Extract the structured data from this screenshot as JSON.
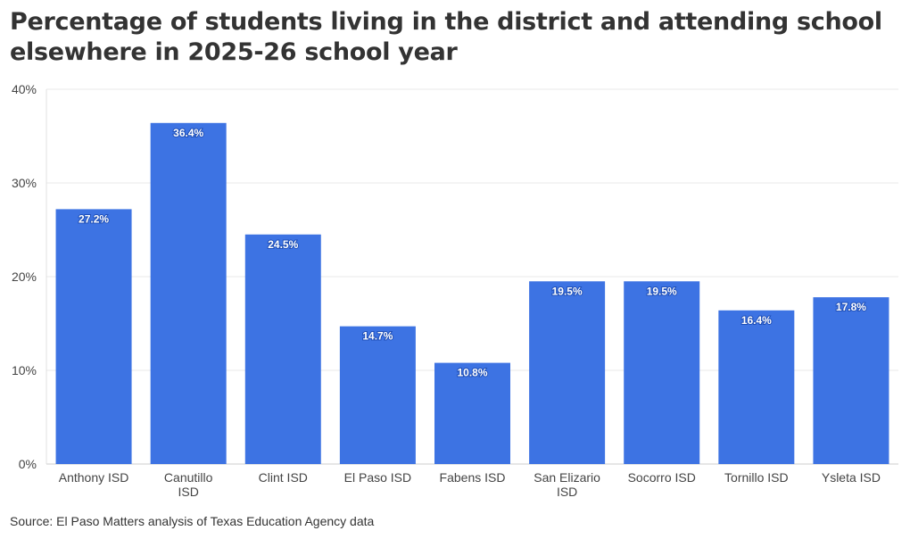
{
  "chart_data": {
    "type": "bar",
    "title": "Percentage of students living in the district and attending school elsewhere in 2025-26 school year",
    "categories": [
      "Anthony ISD",
      "Canutillo ISD",
      "Clint ISD",
      "El Paso ISD",
      "Fabens ISD",
      "San Elizario ISD",
      "Socorro ISD",
      "Tornillo ISD",
      "Ysleta ISD"
    ],
    "values": [
      27.2,
      36.4,
      24.5,
      14.7,
      10.8,
      19.5,
      19.5,
      16.4,
      17.8
    ],
    "data_labels": [
      "27.2%",
      "36.4%",
      "24.5%",
      "14.7%",
      "10.8%",
      "19.5%",
      "19.5%",
      "16.4%",
      "17.8%"
    ],
    "ylim": [
      0,
      40
    ],
    "yticks": [
      0,
      10,
      20,
      30,
      40
    ],
    "ytick_labels": [
      "0%",
      "10%",
      "20%",
      "30%",
      "40%"
    ],
    "xlabel": "",
    "ylabel": "",
    "grid": true,
    "bar_color": "#3d73e3"
  },
  "source": "Source: El Paso Matters analysis of Texas Education Agency data"
}
